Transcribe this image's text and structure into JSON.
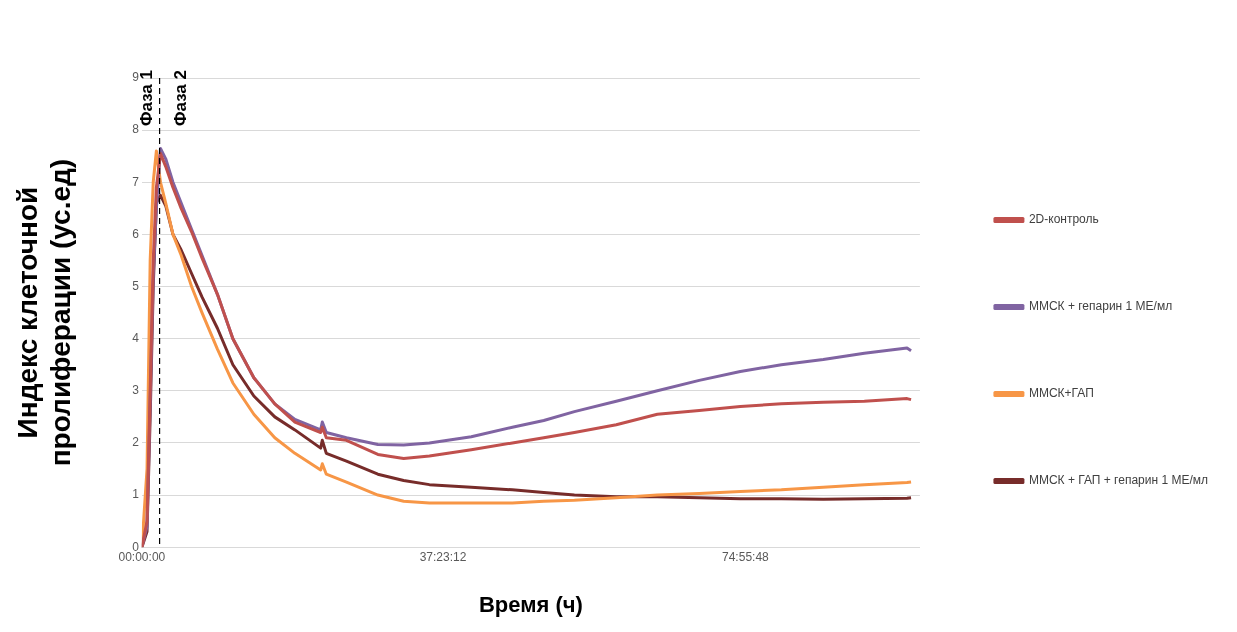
{
  "chart_data": {
    "type": "line",
    "xlabel": "Время (ч)",
    "ylabel": "Индекс клеточной пролиферации (ус.ед)",
    "xlim": [
      0,
      96.6
    ],
    "xticks": [
      {
        "value": 0,
        "label": "00:00:00"
      },
      {
        "value": 37.3867,
        "label": "37:23:12"
      },
      {
        "value": 74.93,
        "label": "74:55:48"
      }
    ],
    "ylim": [
      0,
      9
    ],
    "yticks": [
      0,
      1,
      2,
      3,
      4,
      5,
      6,
      7,
      8,
      9
    ],
    "grid": "y",
    "legend": "right",
    "marker": "none",
    "line_style": "solid",
    "ref_lines": [
      {
        "axis": "x",
        "value": 2.2,
        "color": "#000000",
        "line_style": "dashed"
      }
    ],
    "annotations": [
      "Фаза 1",
      "Фаза 2"
    ],
    "x": [
      0,
      0.64,
      1.03,
      1.41,
      1.8,
      2.31,
      2.96,
      3.86,
      4.88,
      6.17,
      7.46,
      9.38,
      11.3,
      13.9,
      16.5,
      19.0,
      22.2,
      22.4,
      22.9,
      25.4,
      29.3,
      32.5,
      35.7,
      40.9,
      46.0,
      49.9,
      53.7,
      58.9,
      64.0,
      69.2,
      74.3,
      79.4,
      84.6,
      89.7,
      95.0,
      95.5
    ],
    "series": [
      {
        "name": "2D-контроль",
        "color": "#c0504d",
        "values": [
          0,
          0.5,
          3.0,
          5.5,
          6.9,
          7.55,
          7.3,
          6.9,
          6.5,
          6.05,
          5.55,
          4.85,
          4.0,
          3.25,
          2.75,
          2.4,
          2.2,
          2.3,
          2.1,
          2.05,
          1.78,
          1.7,
          1.75,
          1.87,
          2.0,
          2.1,
          2.2,
          2.35,
          2.55,
          2.62,
          2.7,
          2.75,
          2.78,
          2.8,
          2.85,
          2.83
        ]
      },
      {
        "name": "ММСК + гепарин 1 МЕ/мл",
        "color": "#8064a2",
        "values": [
          0,
          0.4,
          2.8,
          5.2,
          6.5,
          7.65,
          7.45,
          7.0,
          6.6,
          6.1,
          5.6,
          4.85,
          4.0,
          3.25,
          2.75,
          2.45,
          2.25,
          2.4,
          2.2,
          2.1,
          1.97,
          1.96,
          2.0,
          2.12,
          2.3,
          2.43,
          2.6,
          2.8,
          3.0,
          3.2,
          3.37,
          3.5,
          3.6,
          3.72,
          3.82,
          3.77
        ]
      },
      {
        "name": "ММСК+ГАП",
        "color": "#f79646",
        "values": [
          0,
          1.5,
          5.5,
          7.0,
          7.6,
          7.0,
          6.6,
          6.0,
          5.6,
          5.0,
          4.5,
          3.8,
          3.15,
          2.55,
          2.1,
          1.8,
          1.48,
          1.6,
          1.4,
          1.25,
          1.0,
          0.88,
          0.85,
          0.85,
          0.85,
          0.88,
          0.9,
          0.95,
          1.0,
          1.03,
          1.07,
          1.1,
          1.15,
          1.2,
          1.24,
          1.25
        ]
      },
      {
        "name": "ММСК + ГАП + гепарин 1 МЕ/мл",
        "color": "#772c2a",
        "values": [
          0,
          0.3,
          2.5,
          5.0,
          6.6,
          6.75,
          6.55,
          6.0,
          5.7,
          5.25,
          4.8,
          4.2,
          3.5,
          2.9,
          2.5,
          2.25,
          1.9,
          2.05,
          1.8,
          1.65,
          1.4,
          1.28,
          1.2,
          1.15,
          1.1,
          1.05,
          1.0,
          0.97,
          0.97,
          0.95,
          0.93,
          0.93,
          0.92,
          0.93,
          0.94,
          0.95
        ]
      }
    ]
  }
}
